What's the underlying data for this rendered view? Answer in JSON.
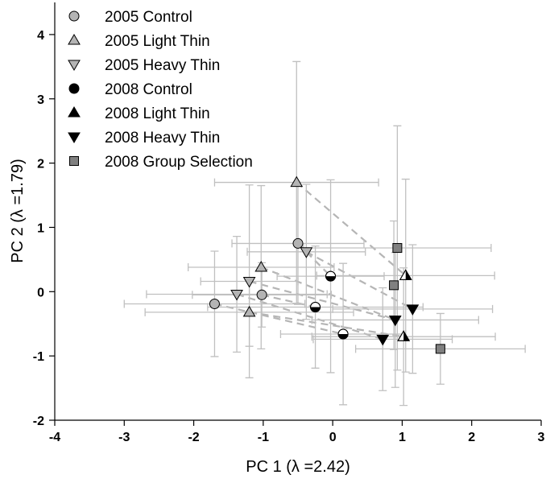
{
  "chart_data": {
    "type": "scatter",
    "title": "",
    "xlabel": "PC 1 (λ =2.42)",
    "ylabel": "PC 2 (λ =1.79)",
    "xlim": [
      -4,
      3
    ],
    "ylim": [
      -2,
      4.5
    ],
    "x_ticks": [
      "-4",
      "-3",
      "-2",
      "-1",
      "0",
      "1",
      "2",
      "3"
    ],
    "y_ticks": [
      "-2",
      "-1",
      "0",
      "1",
      "2",
      "3",
      "4"
    ],
    "legend_position": "top-left",
    "grid": false,
    "series": [
      {
        "name": "2005 Control",
        "marker": "circle",
        "fill": "#b4b4b4",
        "points": [
          {
            "x": -1.7,
            "y": -0.19,
            "xerr": 1.3,
            "yerr": 0.82
          },
          {
            "x": -1.02,
            "y": -0.05,
            "xerr": 1.0,
            "yerr": 0.5
          },
          {
            "x": -0.5,
            "y": 0.75,
            "xerr": 0.95,
            "yerr": 0.95
          }
        ]
      },
      {
        "name": "2005 Light Thin",
        "marker": "triangle-up",
        "fill": "#b4b4b4",
        "points": [
          {
            "x": -1.2,
            "y": -0.32,
            "xerr": 1.5,
            "yerr": 0.53
          },
          {
            "x": -1.03,
            "y": 0.38,
            "xerr": 1.05,
            "yerr": 1.27
          },
          {
            "x": -0.52,
            "y": 1.7,
            "xerr": 1.18,
            "yerr": 1.88
          }
        ]
      },
      {
        "name": "2005 Heavy Thin",
        "marker": "triangle-down",
        "fill": "#b4b4b4",
        "points": [
          {
            "x": -1.38,
            "y": -0.04,
            "xerr": 1.3,
            "yerr": 0.9
          },
          {
            "x": -1.2,
            "y": 0.16,
            "xerr": 0.7,
            "yerr": 1.5
          },
          {
            "x": -0.38,
            "y": 0.62,
            "xerr": 0.85,
            "yerr": 1.05
          }
        ]
      },
      {
        "name": "2008 Control",
        "marker": "circle-half",
        "fill": "#000000",
        "points": [
          {
            "x": -0.25,
            "y": -0.24,
            "xerr": 1.55,
            "yerr": 0.95
          },
          {
            "x": -0.03,
            "y": 0.24,
            "xerr": 0.77,
            "yerr": 1.5
          },
          {
            "x": 0.15,
            "y": -0.66,
            "xerr": 0.9,
            "yerr": 1.1
          }
        ]
      },
      {
        "name": "2008 Light Thin",
        "marker": "triangle-up-half",
        "fill": "#000000",
        "points": [
          {
            "x": 1.02,
            "y": -0.7,
            "xerr": 1.32,
            "yerr": 1.07
          },
          {
            "x": 1.05,
            "y": 0.25,
            "xerr": 1.28,
            "yerr": 1.5
          }
        ]
      },
      {
        "name": "2008 Heavy Thin",
        "marker": "triangle-down",
        "fill": "#000000",
        "points": [
          {
            "x": 0.72,
            "y": -0.74,
            "xerr": 1.0,
            "yerr": 0.8
          },
          {
            "x": 0.9,
            "y": -0.44,
            "xerr": 1.2,
            "yerr": 1.05
          },
          {
            "x": 1.15,
            "y": -0.27,
            "xerr": 1.15,
            "yerr": 1.0
          }
        ]
      },
      {
        "name": "2008 Group Selection",
        "marker": "square",
        "fill": "#808080",
        "points": [
          {
            "x": 0.88,
            "y": 0.1,
            "xerr": 0.0,
            "yerr": 1.0
          },
          {
            "x": 0.93,
            "y": 0.68,
            "xerr": 1.35,
            "yerr": 1.9
          },
          {
            "x": 1.55,
            "y": -0.89,
            "xerr": 1.22,
            "yerr": 0.55
          }
        ]
      }
    ],
    "connections": [
      {
        "from": [
          -0.52,
          1.7
        ],
        "to": [
          1.05,
          0.25
        ]
      },
      {
        "from": [
          -1.03,
          0.38
        ],
        "to": [
          0.9,
          -0.44
        ]
      },
      {
        "from": [
          -1.2,
          -0.32
        ],
        "to": [
          1.02,
          -0.7
        ]
      },
      {
        "from": [
          -0.5,
          0.75
        ],
        "to": [
          -0.03,
          0.24
        ]
      },
      {
        "from": [
          -1.02,
          -0.05
        ],
        "to": [
          -0.25,
          -0.24
        ]
      },
      {
        "from": [
          -1.7,
          -0.19
        ],
        "to": [
          0.15,
          -0.66
        ]
      },
      {
        "from": [
          -0.38,
          0.62
        ],
        "to": [
          1.15,
          -0.27
        ]
      },
      {
        "from": [
          -1.2,
          0.16
        ],
        "to": [
          0.9,
          -0.44
        ]
      },
      {
        "from": [
          -1.38,
          -0.04
        ],
        "to": [
          0.72,
          -0.74
        ]
      }
    ]
  }
}
